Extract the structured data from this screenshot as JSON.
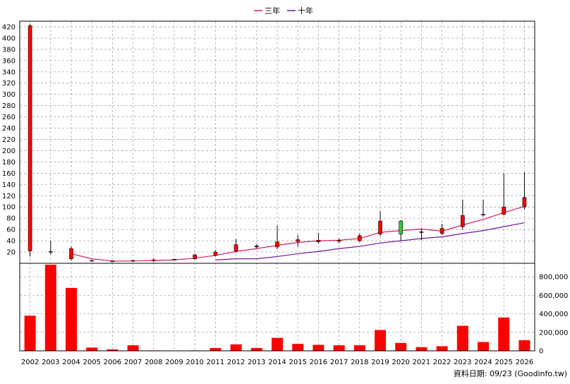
{
  "chart_data": {
    "type": "candlestick",
    "legend": [
      {
        "label": "三年",
        "color": "#d81b60"
      },
      {
        "label": "十年",
        "color": "#6a1b9a"
      }
    ],
    "price_axis": {
      "ylim": [
        0,
        430
      ],
      "ticks": [
        20,
        40,
        60,
        80,
        100,
        120,
        140,
        160,
        180,
        200,
        220,
        240,
        260,
        280,
        300,
        320,
        340,
        360,
        380,
        400,
        420
      ]
    },
    "volume_axis": {
      "ylim": [
        0,
        900000
      ],
      "ticks": [
        0,
        200000,
        400000,
        600000,
        800000
      ],
      "tick_labels": [
        "0",
        "200,000",
        "400,000",
        "600,000",
        "800,000"
      ]
    },
    "x": [
      "2002",
      "2003",
      "2004",
      "2005",
      "2006",
      "2007",
      "2008",
      "2009",
      "2010",
      "2011",
      "2012",
      "2013",
      "2014",
      "2015",
      "2016",
      "2017",
      "2018",
      "2019",
      "2020",
      "2021",
      "2022",
      "2023",
      "2024",
      "2025",
      "2026"
    ],
    "candles": [
      {
        "open": 22,
        "close": 422,
        "high": 425,
        "low": 12
      },
      {
        "open": 20,
        "close": 21,
        "high": 40,
        "low": 16
      },
      {
        "open": 8,
        "close": 26,
        "high": 30,
        "low": 5
      },
      {
        "open": 5,
        "close": 5,
        "high": 6,
        "low": 3
      },
      {
        "open": 4,
        "close": 4,
        "high": 4,
        "low": 4
      },
      {
        "open": 4,
        "close": 5,
        "high": 6,
        "low": 3
      },
      {
        "open": 5,
        "close": 6,
        "high": 9,
        "low": 2
      },
      {
        "open": 6,
        "close": 7,
        "high": 8,
        "low": 5
      },
      {
        "open": 8,
        "close": 15,
        "high": 17,
        "low": 6
      },
      {
        "open": 14,
        "close": 20,
        "high": 23,
        "low": 12
      },
      {
        "open": 22,
        "close": 33,
        "high": 43,
        "low": 19
      },
      {
        "open": 29,
        "close": 31,
        "high": 34,
        "low": 27
      },
      {
        "open": 29,
        "close": 38,
        "high": 67,
        "low": 25
      },
      {
        "open": 39,
        "close": 42,
        "high": 50,
        "low": 30
      },
      {
        "open": 38,
        "close": 41,
        "high": 54,
        "low": 35
      },
      {
        "open": 39,
        "close": 41,
        "high": 44,
        "low": 36
      },
      {
        "open": 40,
        "close": 49,
        "high": 53,
        "low": 38
      },
      {
        "open": 52,
        "close": 75,
        "high": 93,
        "low": 48
      },
      {
        "open": 75,
        "close": 52,
        "high": 77,
        "low": 40
      },
      {
        "open": 55,
        "close": 56,
        "high": 62,
        "low": 41
      },
      {
        "open": 53,
        "close": 62,
        "high": 70,
        "low": 50
      },
      {
        "open": 65,
        "close": 85,
        "high": 113,
        "low": 60
      },
      {
        "open": 86,
        "close": 87,
        "high": 113,
        "low": 83
      },
      {
        "open": 87,
        "close": 100,
        "high": 160,
        "low": 85
      },
      {
        "open": 100,
        "close": 117,
        "high": 162,
        "low": 95
      }
    ],
    "volume": [
      380000,
      950000,
      680000,
      35000,
      15000,
      60000,
      5000,
      3000,
      5000,
      30000,
      70000,
      30000,
      140000,
      75000,
      65000,
      60000,
      60000,
      225000,
      85000,
      40000,
      50000,
      270000,
      95000,
      360000,
      115000
    ],
    "ma_3y": [
      {
        "x": "2004",
        "y": 17
      },
      {
        "x": "2005",
        "y": 8
      },
      {
        "x": "2006",
        "y": 4
      },
      {
        "x": "2007",
        "y": 4
      },
      {
        "x": "2008",
        "y": 5
      },
      {
        "x": "2009",
        "y": 6
      },
      {
        "x": "2010",
        "y": 9
      },
      {
        "x": "2011",
        "y": 14
      },
      {
        "x": "2012",
        "y": 21
      },
      {
        "x": "2013",
        "y": 26
      },
      {
        "x": "2014",
        "y": 32
      },
      {
        "x": "2015",
        "y": 37
      },
      {
        "x": "2016",
        "y": 40
      },
      {
        "x": "2017",
        "y": 41
      },
      {
        "x": "2018",
        "y": 44
      },
      {
        "x": "2019",
        "y": 55
      },
      {
        "x": "2020",
        "y": 58
      },
      {
        "x": "2021",
        "y": 61
      },
      {
        "x": "2022",
        "y": 57
      },
      {
        "x": "2023",
        "y": 68
      },
      {
        "x": "2024",
        "y": 78
      },
      {
        "x": "2025",
        "y": 90
      },
      {
        "x": "2026",
        "y": 101
      }
    ],
    "ma_10y": [
      {
        "x": "2011",
        "y": 6
      },
      {
        "x": "2012",
        "y": 8
      },
      {
        "x": "2013",
        "y": 8
      },
      {
        "x": "2014",
        "y": 12
      },
      {
        "x": "2015",
        "y": 17
      },
      {
        "x": "2016",
        "y": 21
      },
      {
        "x": "2017",
        "y": 26
      },
      {
        "x": "2018",
        "y": 30
      },
      {
        "x": "2019",
        "y": 36
      },
      {
        "x": "2020",
        "y": 40
      },
      {
        "x": "2021",
        "y": 44
      },
      {
        "x": "2022",
        "y": 47
      },
      {
        "x": "2023",
        "y": 53
      },
      {
        "x": "2024",
        "y": 58
      },
      {
        "x": "2025",
        "y": 65
      },
      {
        "x": "2026",
        "y": 72
      }
    ],
    "colors": {
      "up": "#ff0000",
      "down": "#33cc33",
      "volume": "#ff0000",
      "ma_3y": "#d81b60",
      "ma_10y": "#6a1b9a",
      "grid": "#999999"
    },
    "grid": true
  },
  "footer": {
    "text": "資料日期: 09/23 (Goodinfo.tw)"
  }
}
